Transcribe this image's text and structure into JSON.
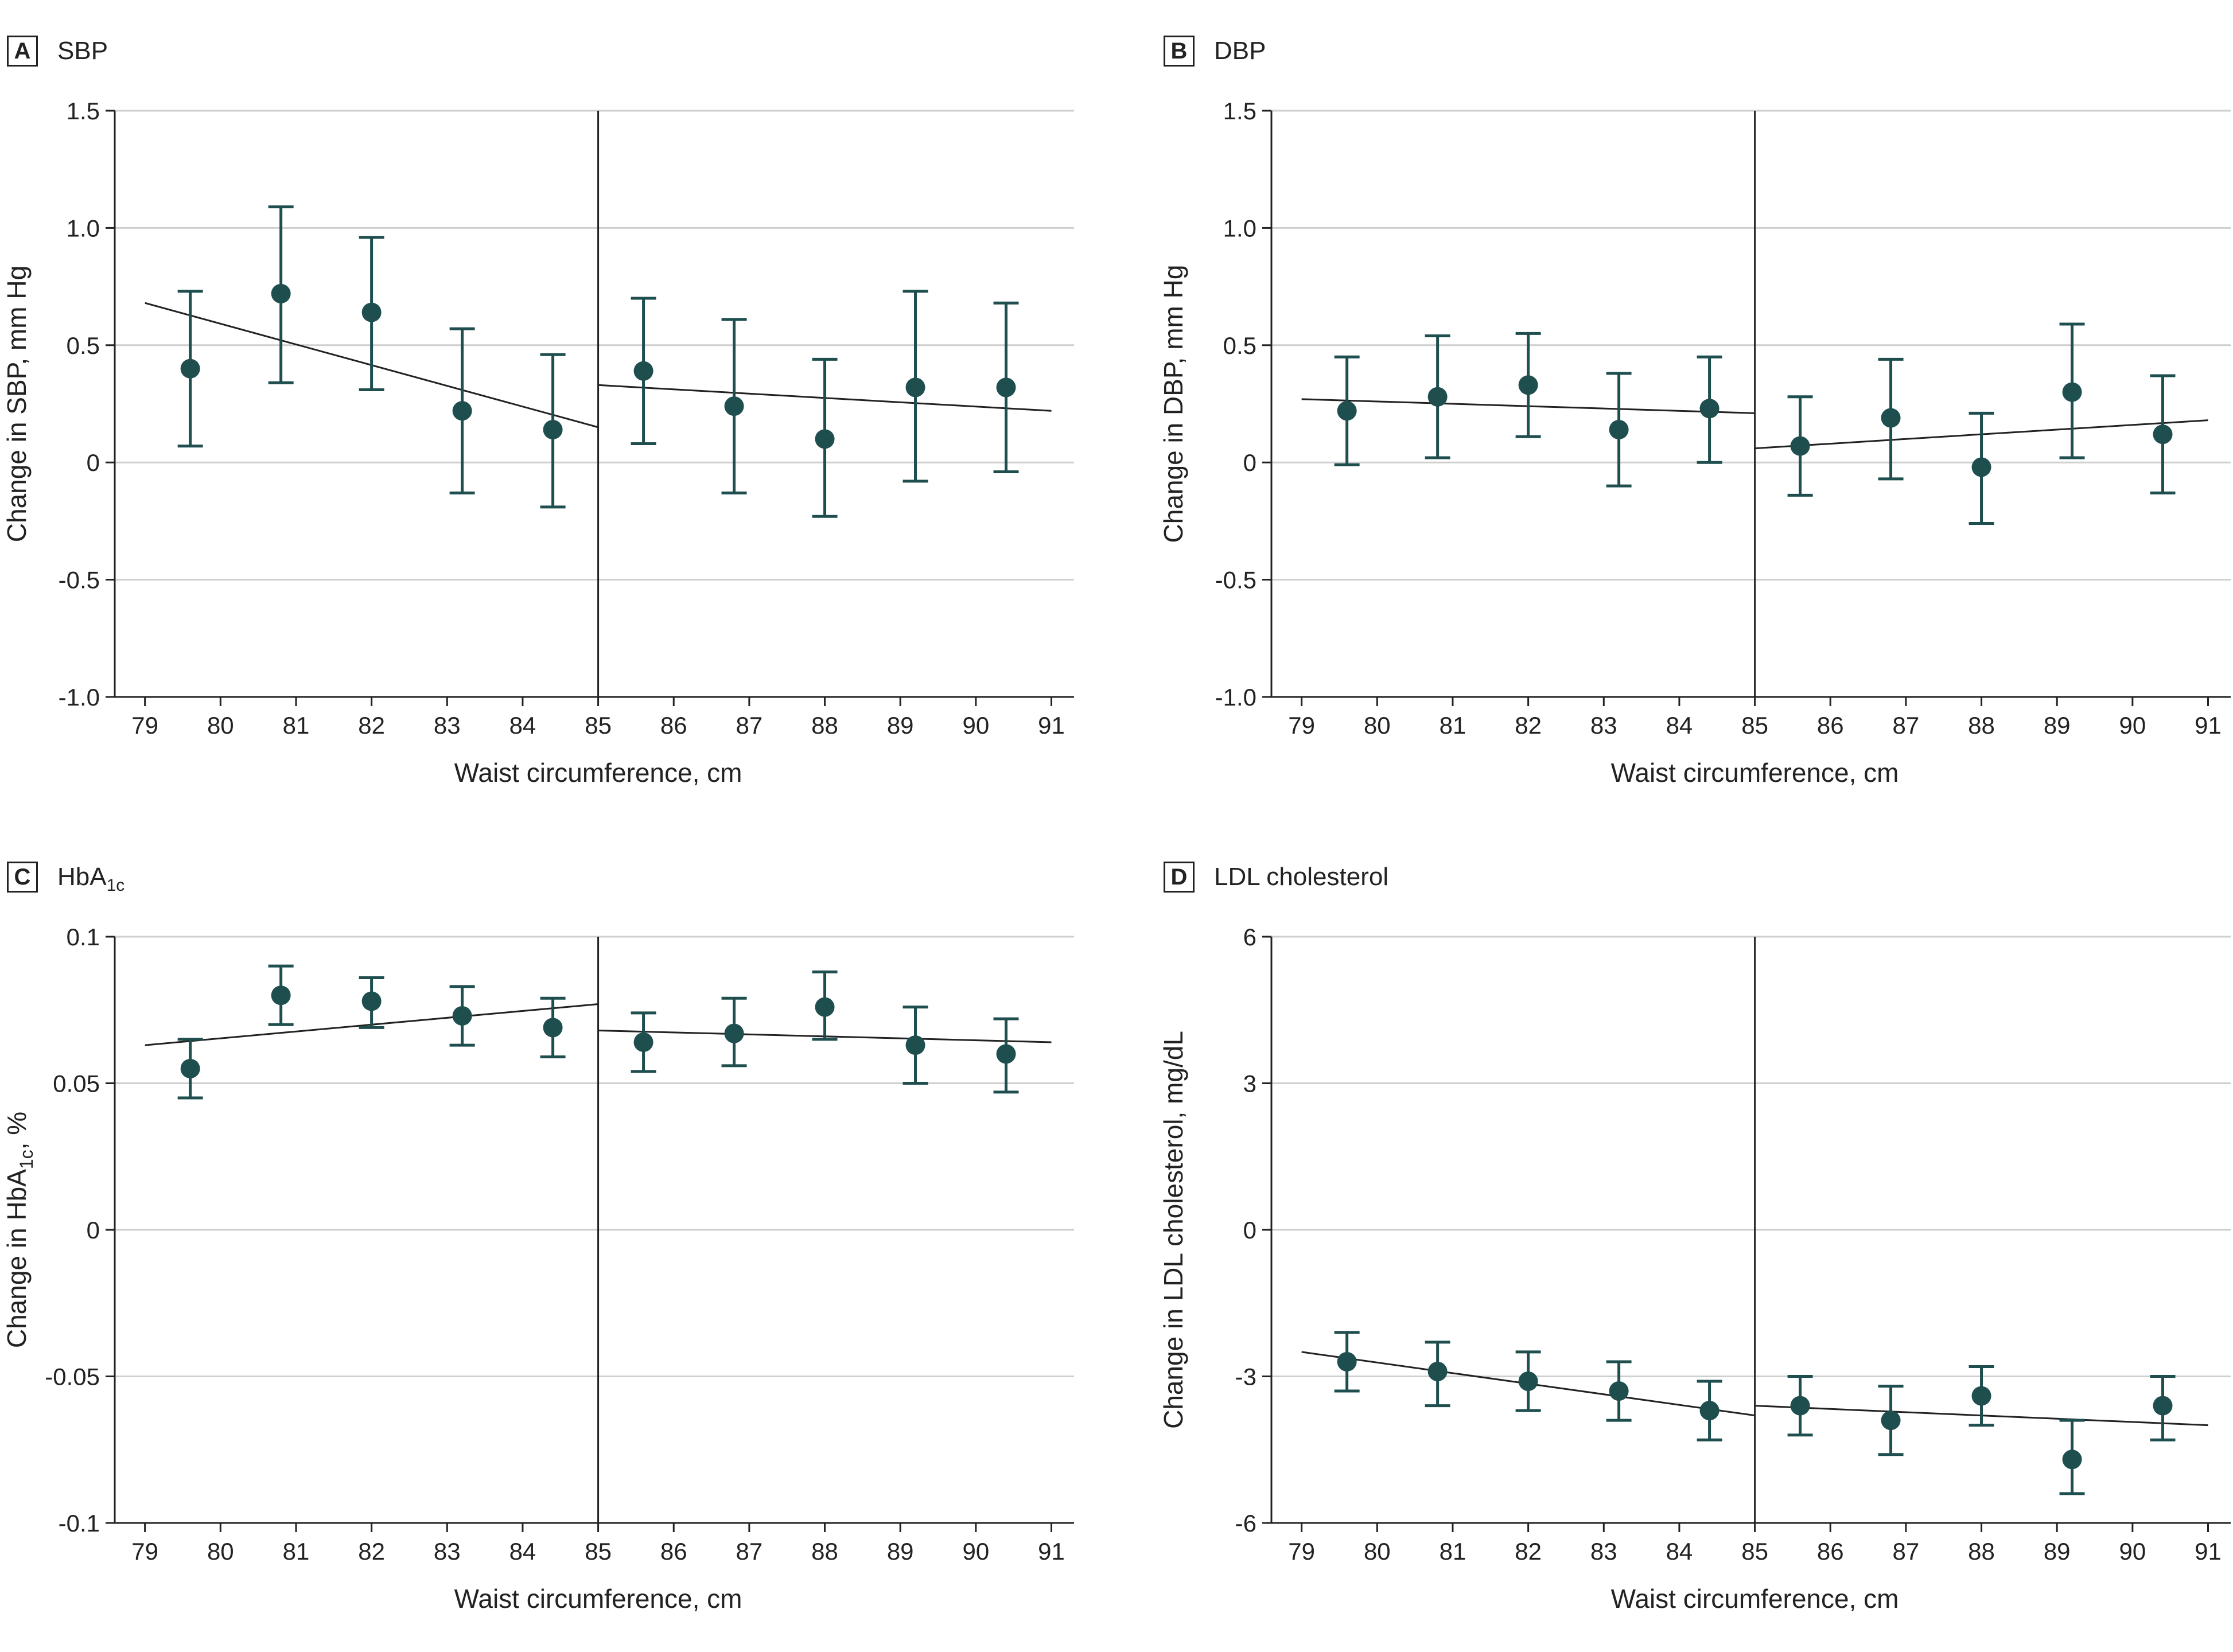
{
  "chart_data": [
    {
      "id": "A",
      "type": "scatter",
      "panel_letter": "A",
      "title": "SBP",
      "title_sub": "",
      "title_tail": "",
      "xlabel": "Waist circumference, cm",
      "ylabel": "Change in SBP, mm Hg",
      "xlim": [
        78.6,
        91.3
      ],
      "ylim": [
        -1.0,
        1.5
      ],
      "xticks": [
        79,
        80,
        81,
        82,
        83,
        84,
        85,
        86,
        87,
        88,
        89,
        90,
        91
      ],
      "yticks": [
        -1.0,
        -0.5,
        0,
        0.5,
        1.0,
        1.5
      ],
      "ytick_labels": [
        "-1.0",
        "-0.5",
        "0",
        "0.5",
        "1.0",
        "1.5"
      ],
      "threshold_x": 85,
      "points": [
        {
          "x": 79.6,
          "y": 0.4,
          "lo": 0.07,
          "hi": 0.73
        },
        {
          "x": 80.8,
          "y": 0.72,
          "lo": 0.34,
          "hi": 1.09
        },
        {
          "x": 82.0,
          "y": 0.64,
          "lo": 0.31,
          "hi": 0.96
        },
        {
          "x": 83.2,
          "y": 0.22,
          "lo": -0.13,
          "hi": 0.57
        },
        {
          "x": 84.4,
          "y": 0.14,
          "lo": -0.19,
          "hi": 0.46
        },
        {
          "x": 85.6,
          "y": 0.39,
          "lo": 0.08,
          "hi": 0.7
        },
        {
          "x": 86.8,
          "y": 0.24,
          "lo": -0.13,
          "hi": 0.61
        },
        {
          "x": 88.0,
          "y": 0.1,
          "lo": -0.23,
          "hi": 0.44
        },
        {
          "x": 89.2,
          "y": 0.32,
          "lo": -0.08,
          "hi": 0.73
        },
        {
          "x": 90.4,
          "y": 0.32,
          "lo": -0.04,
          "hi": 0.68
        }
      ],
      "fit_lines": [
        {
          "x": [
            79.0,
            85.0
          ],
          "y": [
            0.68,
            0.15
          ]
        },
        {
          "x": [
            85.0,
            91.0
          ],
          "y": [
            0.33,
            0.22
          ]
        }
      ]
    },
    {
      "id": "B",
      "type": "scatter",
      "panel_letter": "B",
      "title": "DBP",
      "title_sub": "",
      "title_tail": "",
      "xlabel": "Waist circumference, cm",
      "ylabel": "Change in DBP, mm Hg",
      "xlim": [
        78.6,
        91.3
      ],
      "ylim": [
        -1.0,
        1.5
      ],
      "xticks": [
        79,
        80,
        81,
        82,
        83,
        84,
        85,
        86,
        87,
        88,
        89,
        90,
        91
      ],
      "yticks": [
        -1.0,
        -0.5,
        0,
        0.5,
        1.0,
        1.5
      ],
      "ytick_labels": [
        "-1.0",
        "-0.5",
        "0",
        "0.5",
        "1.0",
        "1.5"
      ],
      "threshold_x": 85,
      "points": [
        {
          "x": 79.6,
          "y": 0.22,
          "lo": -0.01,
          "hi": 0.45
        },
        {
          "x": 80.8,
          "y": 0.28,
          "lo": 0.02,
          "hi": 0.54
        },
        {
          "x": 82.0,
          "y": 0.33,
          "lo": 0.11,
          "hi": 0.55
        },
        {
          "x": 83.2,
          "y": 0.14,
          "lo": -0.1,
          "hi": 0.38
        },
        {
          "x": 84.4,
          "y": 0.23,
          "lo": 0.0,
          "hi": 0.45
        },
        {
          "x": 85.6,
          "y": 0.07,
          "lo": -0.14,
          "hi": 0.28
        },
        {
          "x": 86.8,
          "y": 0.19,
          "lo": -0.07,
          "hi": 0.44
        },
        {
          "x": 88.0,
          "y": -0.02,
          "lo": -0.26,
          "hi": 0.21
        },
        {
          "x": 89.2,
          "y": 0.3,
          "lo": 0.02,
          "hi": 0.59
        },
        {
          "x": 90.4,
          "y": 0.12,
          "lo": -0.13,
          "hi": 0.37
        }
      ],
      "fit_lines": [
        {
          "x": [
            79.0,
            85.0
          ],
          "y": [
            0.27,
            0.21
          ]
        },
        {
          "x": [
            85.0,
            91.0
          ],
          "y": [
            0.06,
            0.18
          ]
        }
      ]
    },
    {
      "id": "C",
      "type": "scatter",
      "panel_letter": "C",
      "title": "HbA",
      "title_sub": "1c",
      "title_tail": "",
      "xlabel": "Waist circumference, cm",
      "ylabel": "Change in HbA",
      "ylabel_sub": "1c",
      "ylabel_tail": ", %",
      "xlim": [
        78.6,
        91.3
      ],
      "ylim": [
        -0.1,
        0.1
      ],
      "xticks": [
        79,
        80,
        81,
        82,
        83,
        84,
        85,
        86,
        87,
        88,
        89,
        90,
        91
      ],
      "yticks": [
        -0.1,
        -0.05,
        0,
        0.05,
        0.1
      ],
      "ytick_labels": [
        "-0.1",
        "-0.05",
        "0",
        "0.05",
        "0.1"
      ],
      "threshold_x": 85,
      "points": [
        {
          "x": 79.6,
          "y": 0.055,
          "lo": 0.045,
          "hi": 0.065
        },
        {
          "x": 80.8,
          "y": 0.08,
          "lo": 0.07,
          "hi": 0.09
        },
        {
          "x": 82.0,
          "y": 0.078,
          "lo": 0.069,
          "hi": 0.086
        },
        {
          "x": 83.2,
          "y": 0.073,
          "lo": 0.063,
          "hi": 0.083
        },
        {
          "x": 84.4,
          "y": 0.069,
          "lo": 0.059,
          "hi": 0.079
        },
        {
          "x": 85.6,
          "y": 0.064,
          "lo": 0.054,
          "hi": 0.074
        },
        {
          "x": 86.8,
          "y": 0.067,
          "lo": 0.056,
          "hi": 0.079
        },
        {
          "x": 88.0,
          "y": 0.076,
          "lo": 0.065,
          "hi": 0.088
        },
        {
          "x": 89.2,
          "y": 0.063,
          "lo": 0.05,
          "hi": 0.076
        },
        {
          "x": 90.4,
          "y": 0.06,
          "lo": 0.047,
          "hi": 0.072
        }
      ],
      "fit_lines": [
        {
          "x": [
            79.0,
            85.0
          ],
          "y": [
            0.063,
            0.077
          ]
        },
        {
          "x": [
            85.0,
            91.0
          ],
          "y": [
            0.068,
            0.064
          ]
        }
      ]
    },
    {
      "id": "D",
      "type": "scatter",
      "panel_letter": "D",
      "title": "LDL cholesterol",
      "title_sub": "",
      "title_tail": "",
      "xlabel": "Waist circumference, cm",
      "ylabel": "Change in LDL cholesterol, mg/dL",
      "xlim": [
        78.6,
        91.3
      ],
      "ylim": [
        -6,
        6
      ],
      "xticks": [
        79,
        80,
        81,
        82,
        83,
        84,
        85,
        86,
        87,
        88,
        89,
        90,
        91
      ],
      "yticks": [
        -6,
        -3,
        0,
        3,
        6
      ],
      "ytick_labels": [
        "-6",
        "-3",
        "0",
        "3",
        "6"
      ],
      "threshold_x": 85,
      "points": [
        {
          "x": 79.6,
          "y": -2.7,
          "lo": -3.3,
          "hi": -2.1
        },
        {
          "x": 80.8,
          "y": -2.9,
          "lo": -3.6,
          "hi": -2.3
        },
        {
          "x": 82.0,
          "y": -3.1,
          "lo": -3.7,
          "hi": -2.5
        },
        {
          "x": 83.2,
          "y": -3.3,
          "lo": -3.9,
          "hi": -2.7
        },
        {
          "x": 84.4,
          "y": -3.7,
          "lo": -4.3,
          "hi": -3.1
        },
        {
          "x": 85.6,
          "y": -3.6,
          "lo": -4.2,
          "hi": -3.0
        },
        {
          "x": 86.8,
          "y": -3.9,
          "lo": -4.6,
          "hi": -3.2
        },
        {
          "x": 88.0,
          "y": -3.4,
          "lo": -4.0,
          "hi": -2.8
        },
        {
          "x": 89.2,
          "y": -4.7,
          "lo": -5.4,
          "hi": -3.9
        },
        {
          "x": 90.4,
          "y": -3.6,
          "lo": -4.3,
          "hi": -3.0
        }
      ],
      "fit_lines": [
        {
          "x": [
            79.0,
            85.0
          ],
          "y": [
            -2.5,
            -3.8
          ]
        },
        {
          "x": [
            85.0,
            91.0
          ],
          "y": [
            -3.6,
            -4.0
          ]
        }
      ]
    }
  ],
  "colors": {
    "marker": "#1f4e4f",
    "errorbar": "#1f4e4f",
    "fit_line": "#222222",
    "threshold_line": "#222222",
    "gridline": "#cfcfcf",
    "axis": "#222222",
    "text": "#222222"
  }
}
